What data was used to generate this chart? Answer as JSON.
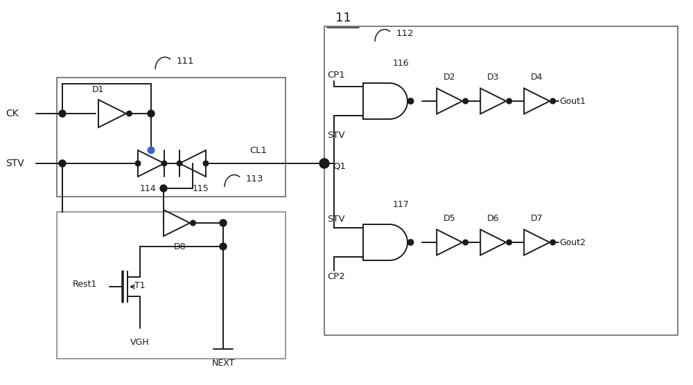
{
  "title": "11",
  "bg_color": "#ffffff",
  "line_color": "#1a1a1a",
  "box_color": "#555555",
  "label_111": "111",
  "label_112": "112",
  "label_113": "113",
  "label_116": "116",
  "label_117": "117",
  "label_114": "114",
  "label_115": "115",
  "label_CK": "CK",
  "label_STV": "STV",
  "label_CL1": "CL1",
  "label_Q1": "Q1",
  "label_D1": "D1",
  "label_D2": "D2",
  "label_D3": "D3",
  "label_D4": "D4",
  "label_D5": "D5",
  "label_D6": "D6",
  "label_D7": "D7",
  "label_D8": "D8",
  "label_T1": "T1",
  "label_Rest1": "Rest1",
  "label_VGH": "VGH",
  "label_NEXT": "NEXT",
  "label_CP1": "CP1",
  "label_CP2": "CP2",
  "label_STV2": "STV",
  "label_STV3": "STV",
  "label_Gout1": "Gout1",
  "label_Gout2": "Gout2"
}
